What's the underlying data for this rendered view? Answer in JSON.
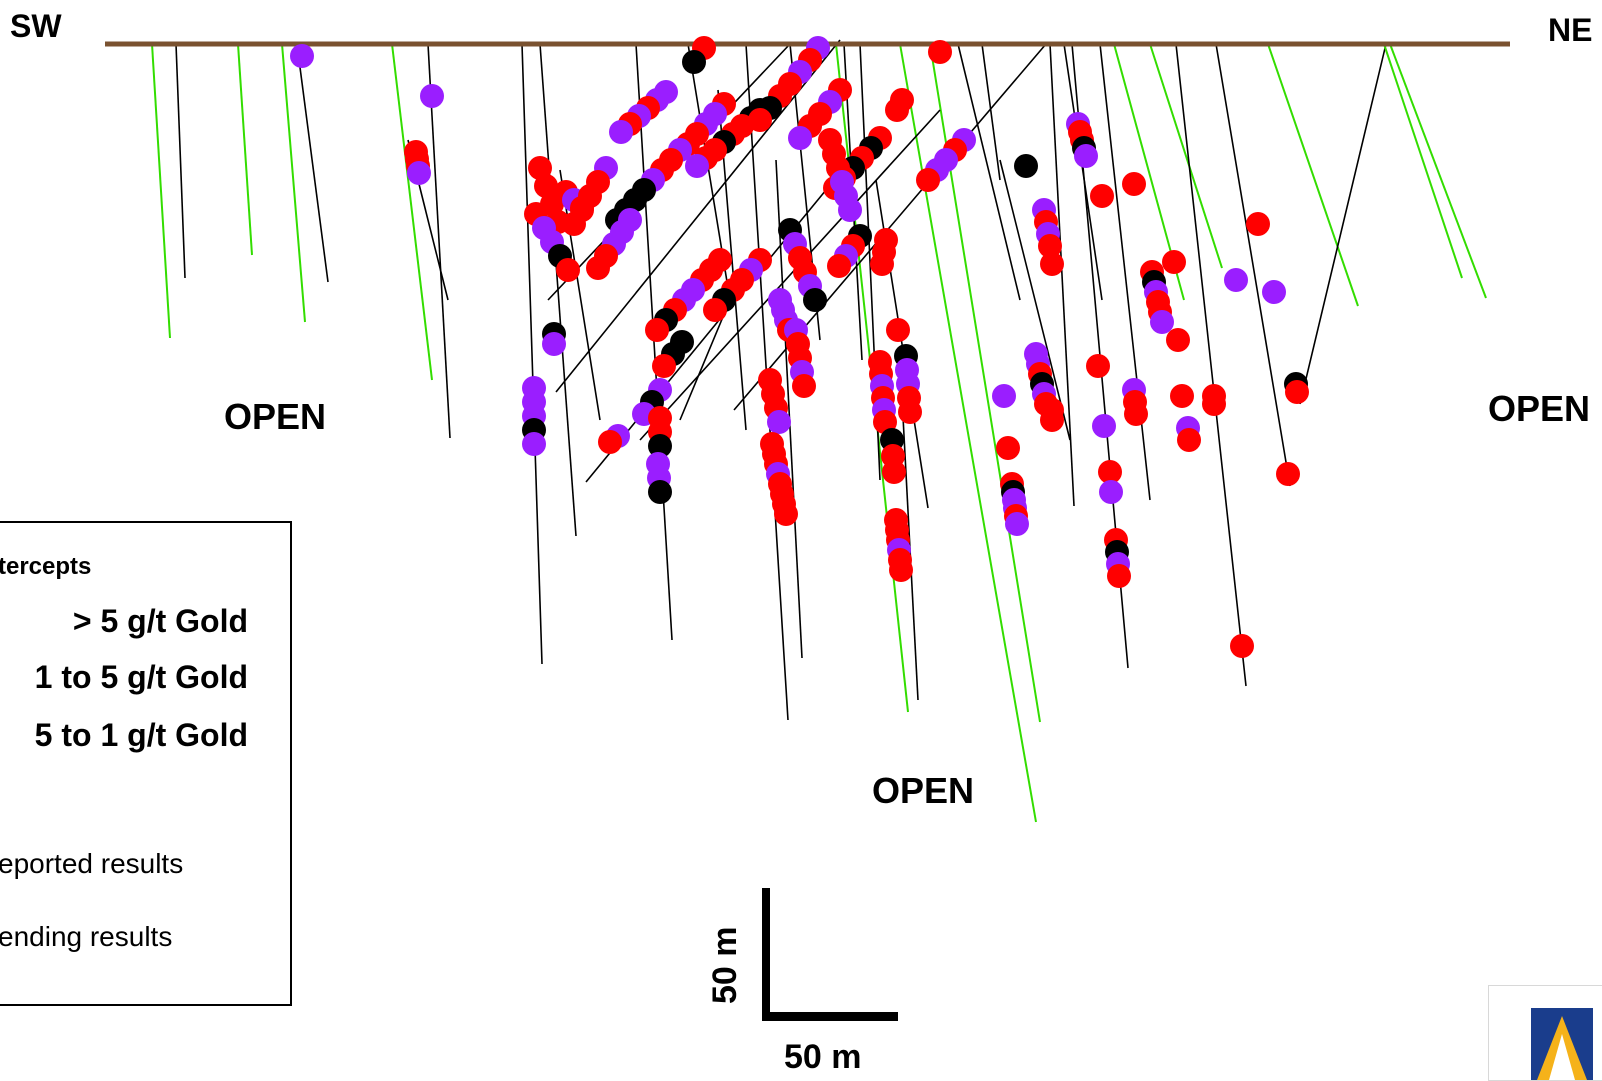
{
  "labels": {
    "sw": "SW",
    "ne": "NE",
    "open_left": "OPEN",
    "open_right": "OPEN",
    "open_bottom": "OPEN"
  },
  "legend": {
    "title": "tercepts",
    "row1": "> 5 g/t Gold",
    "row2": "1 to 5 g/t Gold",
    "row3": "5 to 1 g/t Gold",
    "reported": "eported results",
    "pending": "ending results"
  },
  "scale": {
    "horizontal": "50 m",
    "vertical": "50 m"
  },
  "colors": {
    "grade_gt5": "#000000",
    "grade_1to5": "#ff0000",
    "grade_0_5to1": "#9a1eff",
    "reported_trace": "#000000",
    "pending_trace": "#33dd00",
    "surface": "#7a5230",
    "logo_blue": "#1a3d8c",
    "logo_gold": "#f5b21a"
  }
}
